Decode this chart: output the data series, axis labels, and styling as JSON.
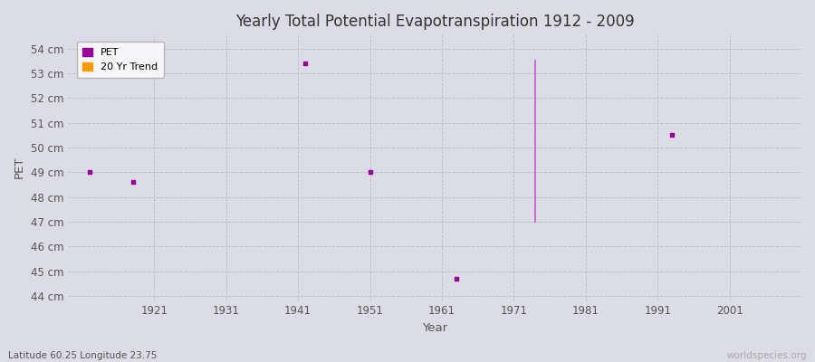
{
  "title": "Yearly Total Potential Evapotranspiration 1912 - 2009",
  "xlabel": "Year",
  "ylabel": "PET",
  "bg_color": "#dcdce4",
  "fig_bg_color": "#dcdce4",
  "ylim": [
    43.8,
    54.6
  ],
  "xlim": [
    1909,
    2011
  ],
  "ytick_labels": [
    "44 cm",
    "45 cm",
    "46 cm",
    "47 cm",
    "48 cm",
    "49 cm",
    "50 cm",
    "51 cm",
    "52 cm",
    "53 cm",
    "54 cm"
  ],
  "ytick_values": [
    44,
    45,
    46,
    47,
    48,
    49,
    50,
    51,
    52,
    53,
    54
  ],
  "xtick_values": [
    1921,
    1931,
    1941,
    1951,
    1961,
    1971,
    1981,
    1991,
    2001
  ],
  "xtick_labels": [
    "1921",
    "1931",
    "1941",
    "1951",
    "1961",
    "1971",
    "1981",
    "1991",
    "2001"
  ],
  "pet_points": [
    [
      1912,
      49.0
    ],
    [
      1918,
      48.6
    ],
    [
      1942,
      53.4
    ],
    [
      1951,
      49.0
    ],
    [
      1963,
      44.7
    ],
    [
      1993,
      50.5
    ]
  ],
  "trend_line": {
    "x": [
      1974,
      1974
    ],
    "y": [
      53.5,
      47.0
    ],
    "color": "#cc55cc",
    "linewidth": 1.2
  },
  "pet_color": "#990099",
  "marker": "s",
  "marker_size": 3,
  "grid_color": "#bbbbcc",
  "grid_style": "--",
  "subtitle": "Latitude 60.25 Longitude 23.75",
  "watermark": "worldspecies.org",
  "legend_pet_color": "#990099",
  "legend_trend_color": "#ff9900"
}
